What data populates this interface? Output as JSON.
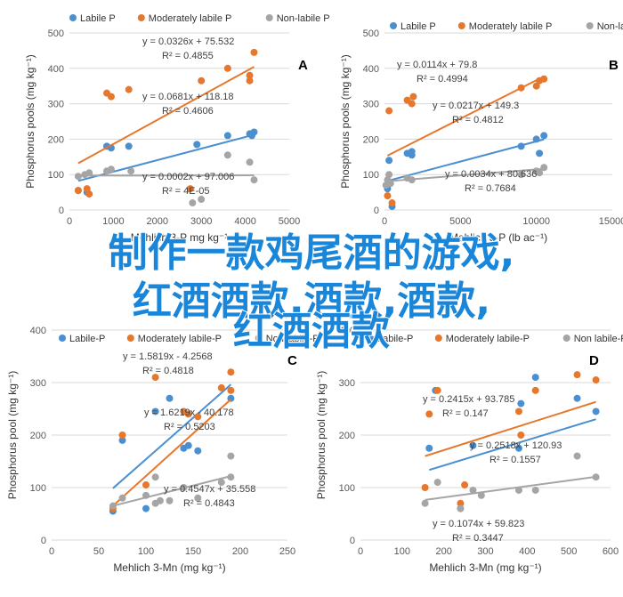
{
  "overlay_text": {
    "line1": "制作一款鸡尾酒的游戏,",
    "line2": "红酒酒款,酒款,酒款,",
    "line3": "红酒酒款"
  },
  "colors": {
    "labile": "#4a8fd0",
    "moderate": "#e7772b",
    "nonlabile": "#a5a5a5",
    "grid": "#d9d9d9",
    "axis": "#595959"
  },
  "chart_data": [
    {
      "type": "scatter",
      "panel": "A",
      "xlabel": "Mehlich 3-P mg kg⁻¹",
      "ylabel": "Phosphorus pools (mg kg⁻¹)",
      "xlim": [
        0,
        5000
      ],
      "ylim": [
        0,
        500
      ],
      "xticks": [
        0,
        1000,
        2000,
        3000,
        4000,
        5000
      ],
      "yticks": [
        0,
        100,
        200,
        300,
        400,
        500
      ],
      "legend": [
        "Labile P",
        "Moderately labile P",
        "Non-labile P"
      ],
      "series": [
        {
          "name": "Labile P",
          "trend": [
            0.0326,
            75.532
          ],
          "equation": "y = 0.0326x + 75.532",
          "r2": "R² = 0.4855",
          "points": [
            [
              200,
              55
            ],
            [
              400,
              50
            ],
            [
              850,
              180
            ],
            [
              950,
              175
            ],
            [
              1350,
              180
            ],
            [
              2900,
              185
            ],
            [
              3600,
              210
            ],
            [
              4100,
              215
            ],
            [
              4200,
              220
            ],
            [
              4150,
              210
            ]
          ]
        },
        {
          "name": "Moderately labile P",
          "trend": [
            0.0681,
            118.18
          ],
          "equation": "y = 0.0681x + 118.18",
          "r2": "R² = 0.4606",
          "points": [
            [
              200,
              55
            ],
            [
              400,
              60
            ],
            [
              450,
              45
            ],
            [
              850,
              330
            ],
            [
              950,
              320
            ],
            [
              1350,
              340
            ],
            [
              2750,
              60
            ],
            [
              3000,
              365
            ],
            [
              3600,
              400
            ],
            [
              4100,
              380
            ],
            [
              4100,
              365
            ],
            [
              4200,
              445
            ]
          ]
        },
        {
          "name": "Non-labile P",
          "trend": [
            0.0002,
            97.006
          ],
          "equation": "y = 0.0002x + 97.006",
          "r2": "R² = 4E-05",
          "points": [
            [
              200,
              95
            ],
            [
              350,
              100
            ],
            [
              450,
              105
            ],
            [
              850,
              110
            ],
            [
              950,
              115
            ],
            [
              1400,
              110
            ],
            [
              2800,
              20
            ],
            [
              3000,
              30
            ],
            [
              3600,
              155
            ],
            [
              4100,
              135
            ],
            [
              4200,
              85
            ]
          ]
        }
      ]
    },
    {
      "type": "scatter",
      "panel": "B",
      "xlabel": "Mehlich 3-P (lb ac⁻¹)",
      "ylabel": "Phosphorus pools (mg kg⁻¹)",
      "xlim": [
        0,
        15000
      ],
      "ylim": [
        0,
        500
      ],
      "xticks": [
        0,
        5000,
        10000,
        15000
      ],
      "yticks": [
        0,
        100,
        200,
        300,
        400,
        500
      ],
      "legend": [
        "Labile P",
        "Moderately labile P",
        "Non-labile P"
      ],
      "series": [
        {
          "name": "Labile P",
          "trend": [
            0.0114,
            79.8
          ],
          "equation": "y = 0.0114x + 79.8",
          "r2": "R² = 0.4994",
          "points": [
            [
              200,
              60
            ],
            [
              300,
              140
            ],
            [
              500,
              10
            ],
            [
              1500,
              160
            ],
            [
              1800,
              165
            ],
            [
              1800,
              155
            ],
            [
              9000,
              180
            ],
            [
              10000,
              200
            ],
            [
              10200,
              160
            ],
            [
              10500,
              210
            ]
          ]
        },
        {
          "name": "Moderately labile P",
          "trend": [
            0.0217,
            149.3
          ],
          "equation": "y = 0.0217x + 149.3",
          "r2": "R² = 0.4812",
          "points": [
            [
              200,
              40
            ],
            [
              300,
              280
            ],
            [
              500,
              20
            ],
            [
              1500,
              310
            ],
            [
              1900,
              320
            ],
            [
              1800,
              300
            ],
            [
              9000,
              345
            ],
            [
              10000,
              350
            ],
            [
              10200,
              365
            ],
            [
              10500,
              370
            ]
          ]
        },
        {
          "name": "Non-labile P",
          "trend": [
            0.0034,
            80.6
          ],
          "equation": "y = 0.0034x + 80.636",
          "r2": "R² = 0.7684",
          "points": [
            [
              100,
              70
            ],
            [
              200,
              85
            ],
            [
              300,
              100
            ],
            [
              400,
              75
            ],
            [
              1500,
              90
            ],
            [
              1800,
              85
            ],
            [
              9000,
              100
            ],
            [
              10000,
              110
            ],
            [
              10500,
              120
            ],
            [
              10200,
              105
            ]
          ]
        }
      ]
    },
    {
      "type": "scatter",
      "panel": "C",
      "xlabel": "Mehlich 3-Mn (mg kg⁻¹)",
      "ylabel": "Phosphorus pool (mg kg⁻¹)",
      "xlim": [
        0,
        250
      ],
      "ylim": [
        0,
        400
      ],
      "xticks": [
        0,
        50,
        100,
        150,
        200,
        250
      ],
      "yticks": [
        0,
        100,
        200,
        300,
        400
      ],
      "legend": [
        "Labile-P",
        "Moderately labile-P",
        "Non labile-P"
      ],
      "series": [
        {
          "name": "Labile-P",
          "trend": [
            1.5819,
            -4.2568
          ],
          "equation": "y = 1.5819x - 4.2568",
          "r2": "R² = 0.4818",
          "points": [
            [
              65,
              55
            ],
            [
              75,
              190
            ],
            [
              100,
              60
            ],
            [
              110,
              245
            ],
            [
              125,
              270
            ],
            [
              140,
              175
            ],
            [
              145,
              180
            ],
            [
              155,
              170
            ],
            [
              190,
              270
            ]
          ]
        },
        {
          "name": "Moderately labile-P",
          "trend": [
            1.6219,
            -40.178
          ],
          "equation": "y = 1.6219x - 40.178",
          "r2": "R² = 0.5203",
          "points": [
            [
              65,
              60
            ],
            [
              75,
              200
            ],
            [
              100,
              105
            ],
            [
              110,
              310
            ],
            [
              140,
              245
            ],
            [
              145,
              240
            ],
            [
              155,
              235
            ],
            [
              180,
              290
            ],
            [
              190,
              285
            ],
            [
              190,
              320
            ]
          ]
        },
        {
          "name": "Non labile-P",
          "trend": [
            0.4547,
            35.558
          ],
          "equation": "y = 0.4547x + 35.558",
          "r2": "R² = 0.4843",
          "points": [
            [
              65,
              65
            ],
            [
              75,
              80
            ],
            [
              100,
              85
            ],
            [
              110,
              70
            ],
            [
              110,
              120
            ],
            [
              115,
              75
            ],
            [
              125,
              75
            ],
            [
              140,
              100
            ],
            [
              155,
              80
            ],
            [
              180,
              110
            ],
            [
              190,
              160
            ],
            [
              190,
              120
            ]
          ]
        }
      ]
    },
    {
      "type": "scatter",
      "panel": "D",
      "xlabel": "Mehlich 3-Mn (mg kg⁻¹)",
      "ylabel": "Phosphorus pool (mg kg⁻¹)",
      "xlim": [
        0,
        600
      ],
      "ylim": [
        0,
        400
      ],
      "xticks": [
        0,
        100,
        200,
        300,
        400,
        500,
        600
      ],
      "yticks": [
        0,
        100,
        200,
        300,
        400
      ],
      "legend": [
        "Labile-P",
        "Moderately labile-P",
        "Non labile-P"
      ],
      "series": [
        {
          "name": "Labile-P",
          "trend": [
            0.2415,
            93.785
          ],
          "equation": "y = 0.2415x + 93.785",
          "r2": "R² = 0.147",
          "points": [
            [
              165,
              175
            ],
            [
              180,
              285
            ],
            [
              240,
              60
            ],
            [
              270,
              180
            ],
            [
              380,
              175
            ],
            [
              385,
              260
            ],
            [
              420,
              310
            ],
            [
              520,
              270
            ],
            [
              565,
              245
            ]
          ]
        },
        {
          "name": "Moderately labile-P",
          "trend": [
            0.2518,
            120.93
          ],
          "equation": "y = 0.2518x + 120.93",
          "r2": "R² = 0.1557",
          "points": [
            [
              155,
              100
            ],
            [
              165,
              240
            ],
            [
              185,
              285
            ],
            [
              240,
              70
            ],
            [
              250,
              105
            ],
            [
              380,
              245
            ],
            [
              385,
              200
            ],
            [
              420,
              285
            ],
            [
              520,
              315
            ],
            [
              565,
              305
            ]
          ]
        },
        {
          "name": "Non labile-P",
          "trend": [
            0.1074,
            59.823
          ],
          "equation": "y = 0.1074x + 59.823",
          "r2": "R² = 0.3447",
          "points": [
            [
              155,
              70
            ],
            [
              185,
              110
            ],
            [
              240,
              60
            ],
            [
              270,
              95
            ],
            [
              290,
              85
            ],
            [
              380,
              95
            ],
            [
              420,
              95
            ],
            [
              520,
              160
            ],
            [
              565,
              120
            ]
          ]
        }
      ]
    }
  ]
}
